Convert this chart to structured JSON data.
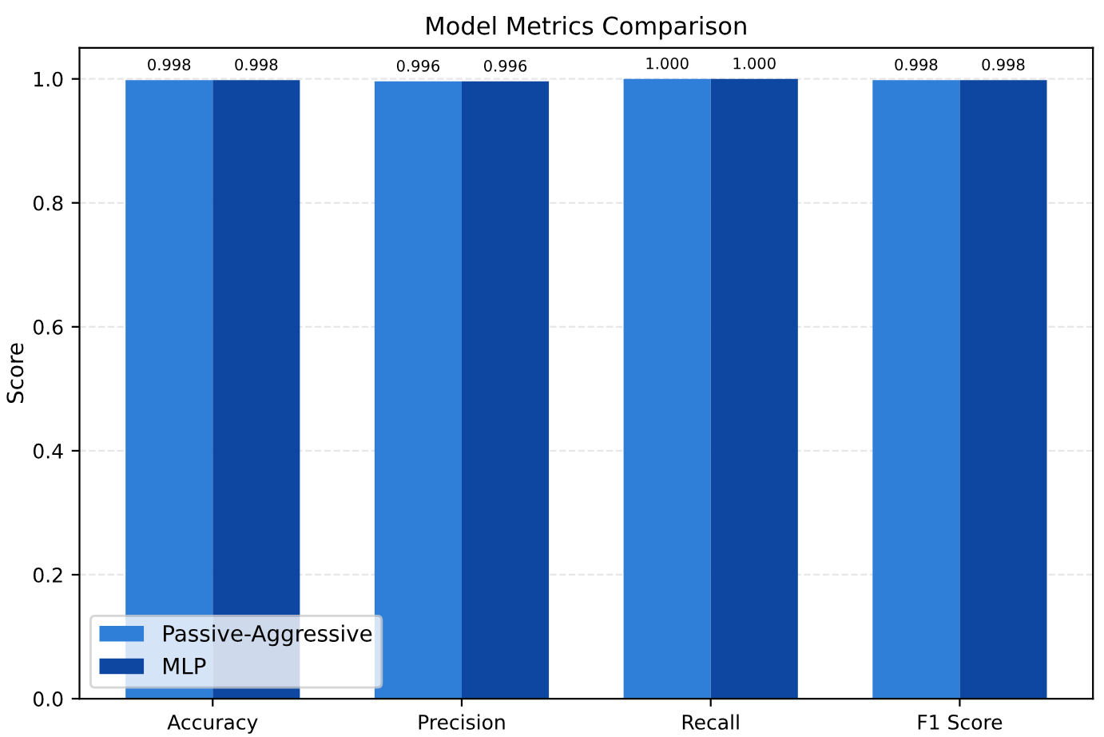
{
  "chart_data": {
    "type": "bar",
    "title": "Model Metrics Comparison",
    "ylabel": "Score",
    "categories": [
      "Accuracy",
      "Precision",
      "Recall",
      "F1 Score"
    ],
    "series": [
      {
        "name": "Passive-Aggressive",
        "color": "#2f7ed8",
        "values": [
          0.998,
          0.996,
          1.0,
          0.998
        ],
        "value_labels": [
          "0.998",
          "0.996",
          "1.000",
          "0.998"
        ]
      },
      {
        "name": "MLP",
        "color": "#0d47a1",
        "values": [
          0.998,
          0.996,
          1.0,
          0.998
        ],
        "value_labels": [
          "0.998",
          "0.996",
          "1.000",
          "0.998"
        ]
      }
    ],
    "ylim": [
      0,
      1.05
    ],
    "yticks": [
      {
        "value": 0,
        "label": "0.0"
      },
      {
        "value": 0.2,
        "label": "0.2"
      },
      {
        "value": 0.4,
        "label": "0.4"
      },
      {
        "value": 0.6,
        "label": "0.6"
      },
      {
        "value": 0.8,
        "label": "0.8"
      },
      {
        "value": 1.0,
        "label": "1.0"
      }
    ],
    "grid": "y",
    "legend": "bottom left"
  }
}
